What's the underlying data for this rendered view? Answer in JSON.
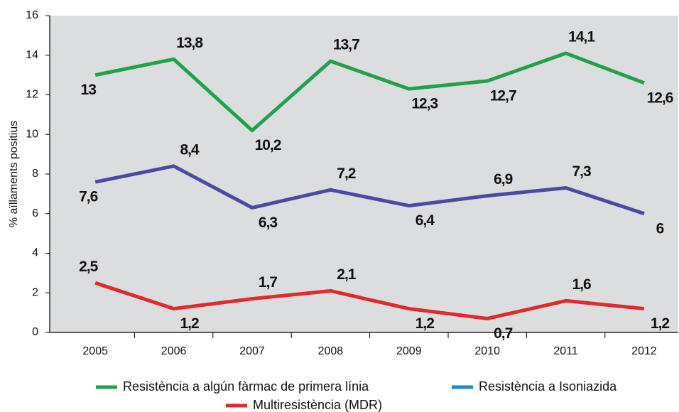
{
  "chart_data": {
    "type": "line",
    "y_label": "% aïllaments positius",
    "categories": [
      "2005",
      "2006",
      "2007",
      "2008",
      "2009",
      "2010",
      "2011",
      "2012"
    ],
    "series": [
      {
        "name": "Resistència a algún fàrmac de primera línia",
        "color": "#1fa24a",
        "legend_color": "#1fa24a",
        "values": [
          13,
          13.8,
          10.2,
          13.7,
          12.3,
          12.7,
          14.1,
          12.6
        ],
        "value_labels": [
          "13",
          "13,8",
          "10,2",
          "13,7",
          "12,3",
          "12,7",
          "14,1",
          "12,6"
        ]
      },
      {
        "name": "Resistència a Isoniazida",
        "color": "#4a4aa6",
        "legend_color": "#1a8ad0",
        "values": [
          7.6,
          8.4,
          6.3,
          7.2,
          6.4,
          6.9,
          7.3,
          6
        ],
        "value_labels": [
          "7,6",
          "8,4",
          "6,3",
          "7,2",
          "6,4",
          "6,9",
          "7,3",
          "6"
        ]
      },
      {
        "name": "Multiresistència (MDR)",
        "color": "#e12a2a",
        "legend_color": "#e12a2a",
        "values": [
          2.5,
          1.2,
          1.7,
          2.1,
          1.2,
          0.7,
          1.6,
          1.2
        ],
        "value_labels": [
          "2,5",
          "1,2",
          "1,7",
          "2,1",
          "1,2",
          "0,7",
          "1,6",
          "1,2"
        ]
      }
    ],
    "ylim": [
      0,
      16
    ],
    "yticks": [
      0,
      2,
      4,
      6,
      8,
      10,
      12,
      14,
      16
    ],
    "grid": false
  }
}
